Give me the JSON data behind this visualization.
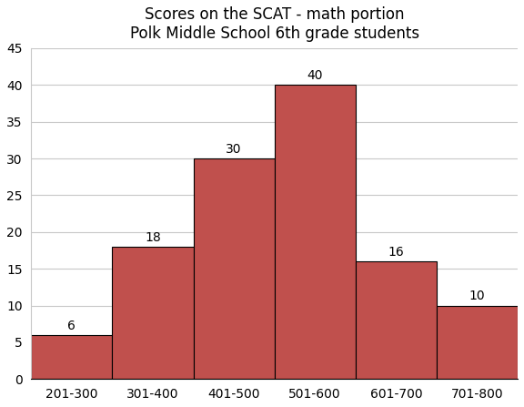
{
  "title_line1": "Scores on the SCAT - math portion",
  "title_line2": "Polk Middle School 6th grade students",
  "categories": [
    "201-300",
    "301-400",
    "401-500",
    "501-600",
    "601-700",
    "701-800"
  ],
  "values": [
    6,
    18,
    30,
    40,
    16,
    10
  ],
  "bar_color": "#c0504d",
  "bar_edge_color": "#000000",
  "bar_edge_width": 0.8,
  "ylim": [
    0,
    45
  ],
  "yticks": [
    0,
    5,
    10,
    15,
    20,
    25,
    30,
    35,
    40,
    45
  ],
  "grid_color": "#c8c8c8",
  "background_color": "#ffffff",
  "title_fontsize": 12,
  "tick_fontsize": 10,
  "bar_label_fontsize": 10,
  "bar_label_color": "#000000"
}
